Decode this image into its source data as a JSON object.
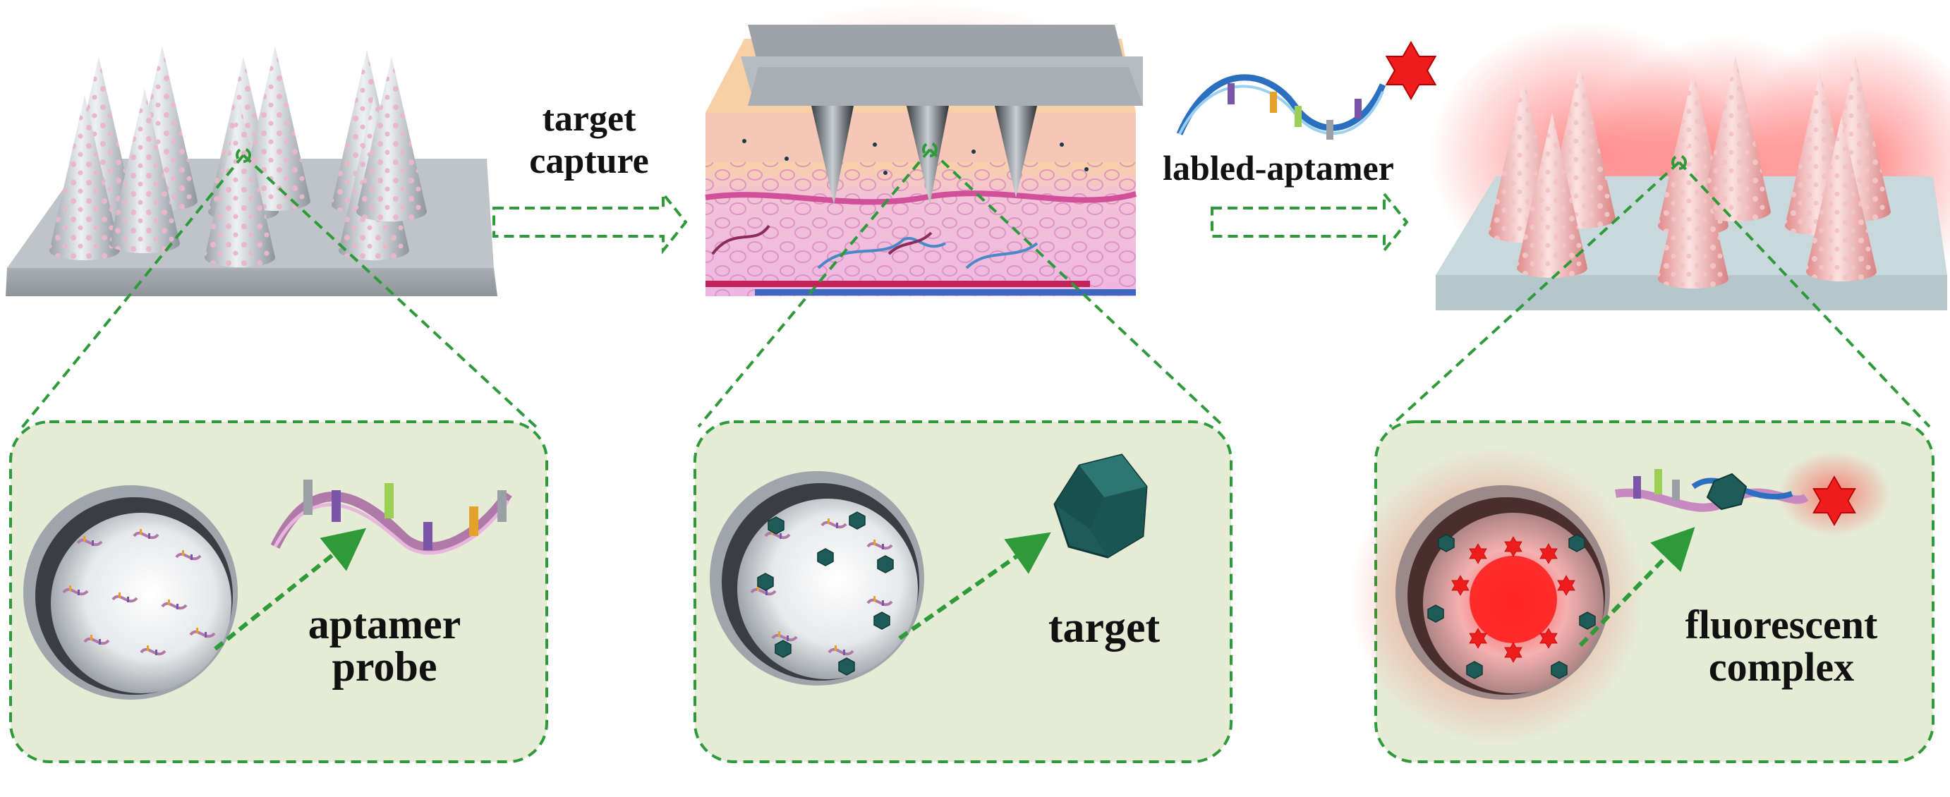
{
  "labels": {
    "step1": [
      "target",
      "capture"
    ],
    "step2": "labled-aptamer",
    "panel1": [
      "aptamer",
      "probe"
    ],
    "panel2": [
      "target"
    ],
    "panel3": [
      "fluorescent",
      "complex"
    ]
  },
  "colors": {
    "dash_green": "#2e9a3a",
    "panel_fill": "#e5ebd5",
    "patch_gray": "#c3c7cb",
    "cone_gray": "#dfe3e6",
    "dot_pink": "#e9b8c8",
    "fluor_red": "#ee1c1c",
    "target_teal": "#1f5b58",
    "skin_pink": "#f2c3df",
    "skin_top": "#f7d3a8"
  },
  "icons": {
    "aptamer": "ribbon-aptamer-icon",
    "target": "polyhedron-target-icon",
    "label": "red-star-icon",
    "arrow": "hollow-dashed-arrow-icon"
  }
}
